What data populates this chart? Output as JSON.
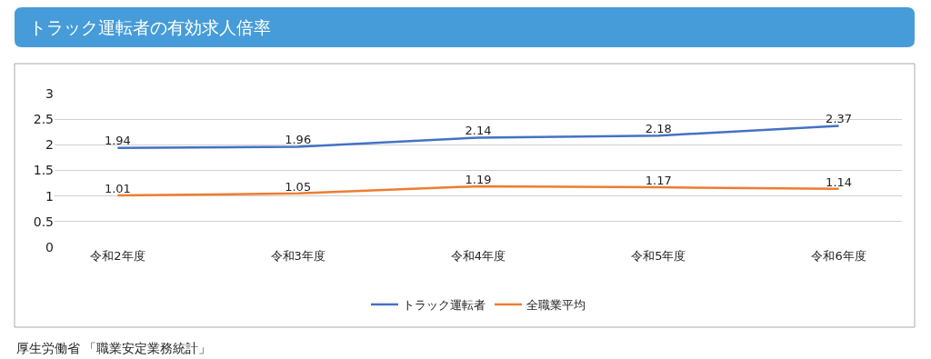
{
  "chart_data": {
    "type": "line",
    "title": "トラック運転者の有効求人倍率",
    "categories": [
      "令和2年度",
      "令和3年度",
      "令和4年度",
      "令和5年度",
      "令和6年度"
    ],
    "series": [
      {
        "name": "トラック運転者",
        "color": "#4472c4",
        "values": [
          1.94,
          1.96,
          2.14,
          2.18,
          2.37
        ]
      },
      {
        "name": "全職業平均",
        "color": "#ed7d31",
        "values": [
          1.01,
          1.05,
          1.19,
          1.17,
          1.14
        ]
      }
    ],
    "ylim": [
      0,
      3
    ],
    "yticks": [
      0,
      0.5,
      1,
      1.5,
      2,
      2.5,
      3
    ],
    "grid": "y",
    "legend": "bottom",
    "data_labels": true,
    "marker": "none",
    "line_style": "solid",
    "annotations": [
      "厚生労働省 「職業安定業務統計」"
    ]
  }
}
